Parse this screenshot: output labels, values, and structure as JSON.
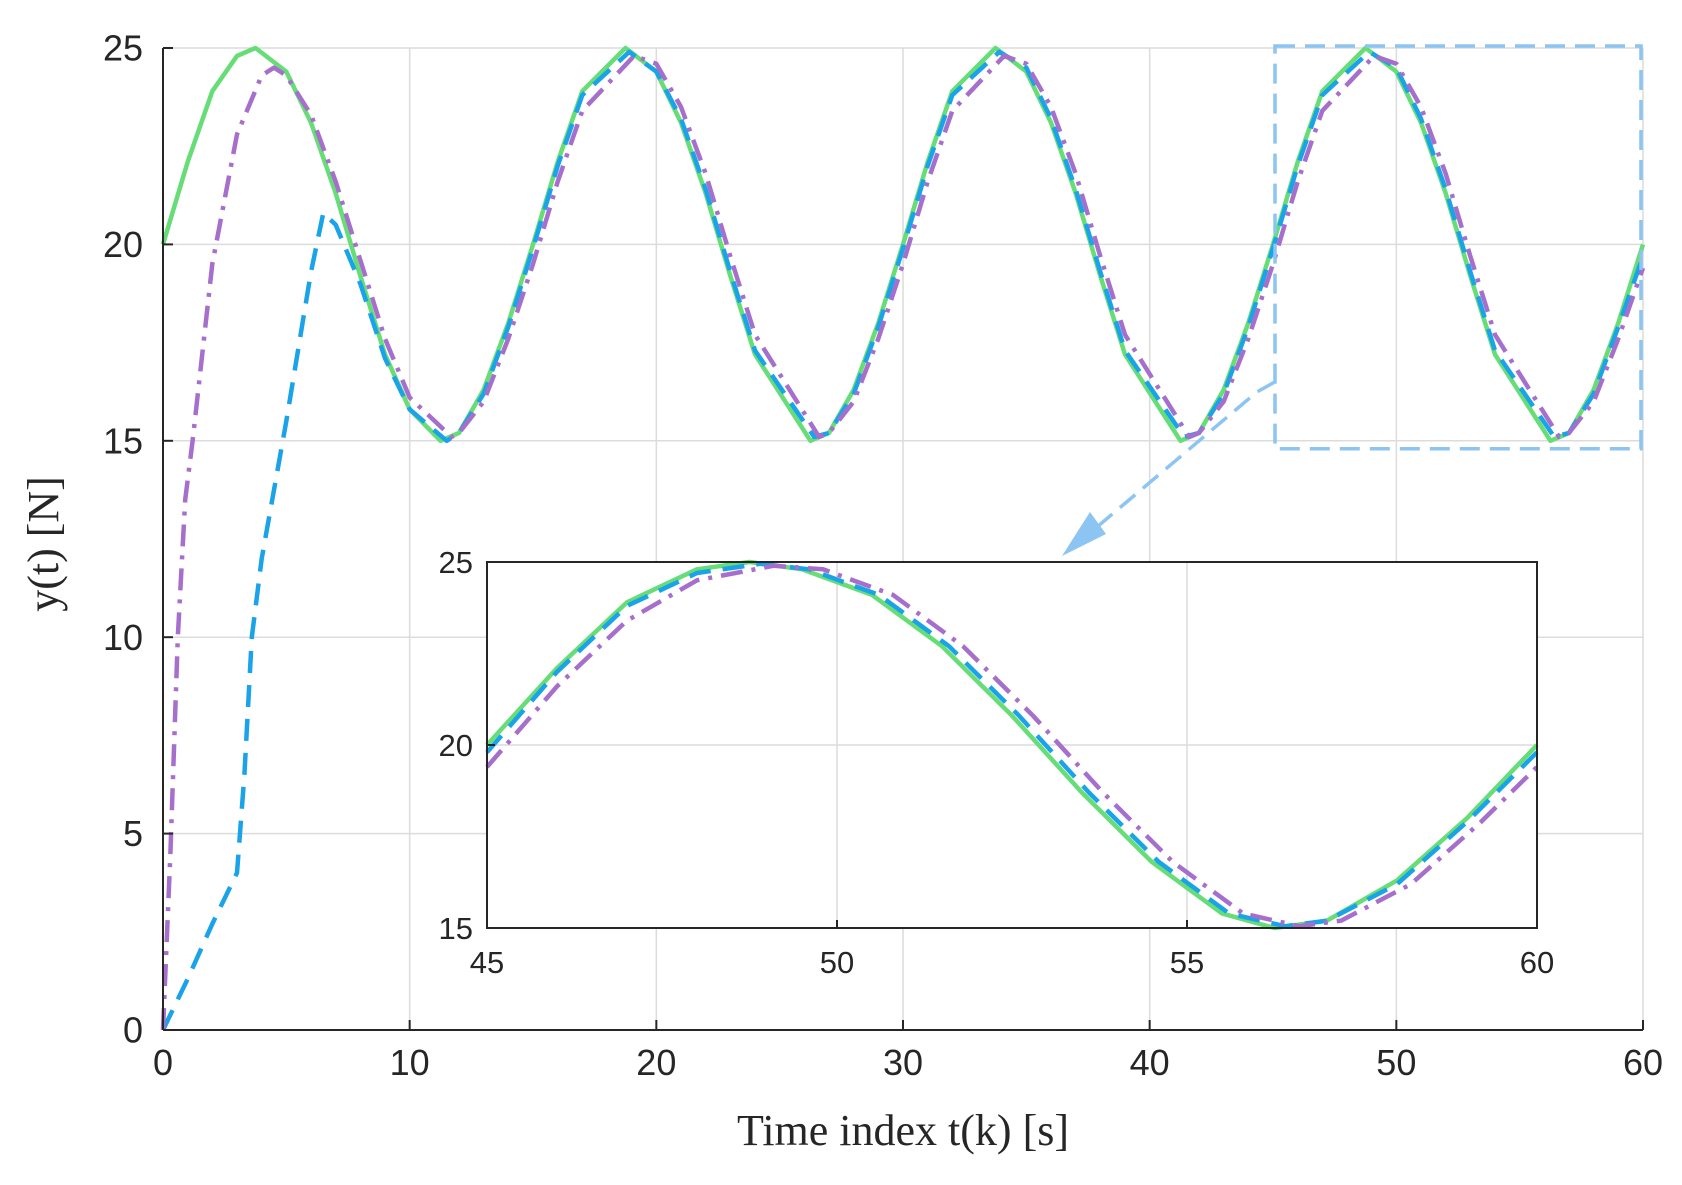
{
  "chart_data": [
    {
      "type": "line",
      "xlabel": "Time index t(k) [s]",
      "ylabel": "y(t) [N]",
      "xlim": [
        0,
        60
      ],
      "ylim": [
        0,
        25
      ],
      "xticks": [
        "0",
        "10",
        "20",
        "30",
        "40",
        "50",
        "60"
      ],
      "yticks": [
        "0",
        "5",
        "10",
        "15",
        "20",
        "25"
      ],
      "grid": true,
      "legend": "none",
      "series": [
        {
          "color": "#66dd77",
          "style": "solid",
          "x": [
            0,
            1,
            2,
            3,
            3.75,
            5,
            6,
            7,
            8,
            9,
            10,
            11.25,
            12,
            13,
            14,
            15,
            16,
            17,
            18.75,
            20,
            21,
            22,
            23,
            24,
            26.25,
            27,
            28,
            29,
            30,
            31,
            32,
            33.75,
            35,
            36,
            37,
            38,
            39,
            41.25,
            42,
            43,
            44,
            45,
            46,
            47,
            48.75,
            50,
            51,
            52,
            53,
            54,
            56.25,
            57,
            58,
            59,
            60
          ],
          "y": [
            20,
            22.1,
            23.9,
            24.8,
            25,
            24.4,
            23.1,
            21.3,
            19.2,
            17.2,
            15.8,
            15,
            15.2,
            16.3,
            18,
            20,
            22.1,
            23.9,
            25,
            24.4,
            23.1,
            21.3,
            19.2,
            17.2,
            15,
            15.2,
            16.3,
            18,
            20,
            22.1,
            23.9,
            25,
            24.4,
            23.1,
            21.3,
            19.2,
            17.2,
            15,
            15.2,
            16.3,
            18,
            20,
            22.1,
            23.9,
            25,
            24.4,
            23.1,
            21.3,
            19.2,
            17.2,
            15,
            15.2,
            16.3,
            18,
            20
          ]
        },
        {
          "color": "#1aa3e8",
          "style": "dashed",
          "x": [
            0,
            1,
            2,
            3,
            3.3,
            3.6,
            4,
            5,
            6,
            6.5,
            7,
            8,
            9,
            10,
            11.5,
            12,
            13,
            14,
            15,
            16,
            17,
            18.9,
            20,
            21,
            22,
            23,
            24,
            26.4,
            27,
            28,
            29,
            30,
            31,
            32,
            33.9,
            35,
            36,
            37,
            38,
            39,
            41.4,
            42,
            43,
            44,
            45,
            46,
            47,
            48.9,
            50,
            51,
            52,
            53,
            54,
            56.4,
            57,
            58,
            59,
            60
          ],
          "y": [
            0,
            1.3,
            2.7,
            4,
            6.5,
            10,
            12,
            15.5,
            19.3,
            20.8,
            20.5,
            19,
            17.1,
            15.8,
            15,
            15.2,
            16.2,
            17.9,
            19.9,
            22,
            23.8,
            24.9,
            24.4,
            23.2,
            21.4,
            19.3,
            17.3,
            15.1,
            15.2,
            16.2,
            17.9,
            19.9,
            22,
            23.8,
            24.9,
            24.5,
            23.2,
            21.4,
            19.3,
            17.3,
            15.1,
            15.2,
            16.2,
            17.9,
            19.9,
            22,
            23.8,
            24.9,
            24.5,
            23.2,
            21.4,
            19.3,
            17.3,
            15.1,
            15.2,
            16.2,
            17.9,
            19.7
          ]
        },
        {
          "color": "#a66fcc",
          "style": "dashdot",
          "x": [
            0,
            0.3,
            0.6,
            0.9,
            1.2,
            2,
            3,
            4,
            4.5,
            5,
            6,
            7,
            8,
            9,
            10,
            11.7,
            12,
            13,
            14,
            15,
            16,
            17,
            19.1,
            20,
            21,
            22,
            23,
            24,
            26.6,
            27,
            28,
            29,
            30,
            31,
            32,
            34.1,
            35,
            36,
            37,
            38,
            39,
            41.6,
            42,
            43,
            44,
            45,
            46,
            47,
            49.1,
            50,
            51,
            52,
            53,
            54,
            56.6,
            57,
            58,
            59,
            60
          ],
          "y": [
            0,
            4.5,
            10,
            13.5,
            15,
            19.5,
            22.8,
            24.3,
            24.5,
            24.3,
            23.3,
            21.6,
            19.6,
            17.6,
            16.1,
            15.1,
            15.2,
            16,
            17.6,
            19.5,
            21.6,
            23.4,
            24.8,
            24.6,
            23.5,
            21.8,
            19.7,
            17.7,
            15.1,
            15.2,
            16,
            17.6,
            19.5,
            21.6,
            23.4,
            24.8,
            24.6,
            23.5,
            21.8,
            19.7,
            17.7,
            15.1,
            15.2,
            16,
            17.6,
            19.5,
            21.6,
            23.4,
            24.8,
            24.6,
            23.5,
            21.8,
            19.7,
            17.7,
            15.1,
            15.2,
            16,
            17.6,
            19.4
          ]
        }
      ]
    },
    {
      "type": "line",
      "xlim": [
        45,
        60
      ],
      "ylim": [
        15,
        25
      ],
      "xticks": [
        "45",
        "50",
        "55",
        "60"
      ],
      "yticks": [
        "15",
        "20",
        "25"
      ],
      "grid": true,
      "legend": "none",
      "series": [
        {
          "color": "#66dd77",
          "style": "solid",
          "x": [
            45,
            46,
            47,
            48,
            48.75,
            49.5,
            50.5,
            51.5,
            52.5,
            53.5,
            54.5,
            55.5,
            56.25,
            57,
            58,
            59,
            60
          ],
          "y": [
            20,
            22.1,
            23.9,
            24.8,
            25,
            24.8,
            24.1,
            22.7,
            20.8,
            18.7,
            16.8,
            15.4,
            15,
            15.2,
            16.3,
            18,
            20
          ]
        },
        {
          "color": "#1aa3e8",
          "style": "dashed",
          "x": [
            45,
            46,
            47,
            48,
            48.9,
            49.6,
            50.6,
            51.6,
            52.6,
            53.6,
            54.6,
            55.6,
            56.4,
            57,
            58,
            59,
            60
          ],
          "y": [
            19.8,
            22,
            23.8,
            24.7,
            24.95,
            24.8,
            24.1,
            22.7,
            20.8,
            18.7,
            16.8,
            15.4,
            15.05,
            15.2,
            16.2,
            17.9,
            19.8
          ]
        },
        {
          "color": "#a66fcc",
          "style": "dashdot",
          "x": [
            45,
            46,
            47,
            48,
            49.1,
            49.8,
            50.8,
            51.8,
            52.8,
            53.8,
            54.8,
            55.8,
            56.6,
            57.2,
            58.2,
            59.2,
            60
          ],
          "y": [
            19.4,
            21.6,
            23.4,
            24.5,
            24.9,
            24.8,
            24.1,
            22.7,
            20.8,
            18.7,
            16.8,
            15.4,
            15.05,
            15.2,
            16.2,
            17.9,
            19.4
          ]
        }
      ]
    }
  ],
  "zoom_indicator": {
    "color": "#8cc4f2",
    "region_x": [
      45,
      60
    ],
    "region_y": [
      15,
      25
    ]
  }
}
